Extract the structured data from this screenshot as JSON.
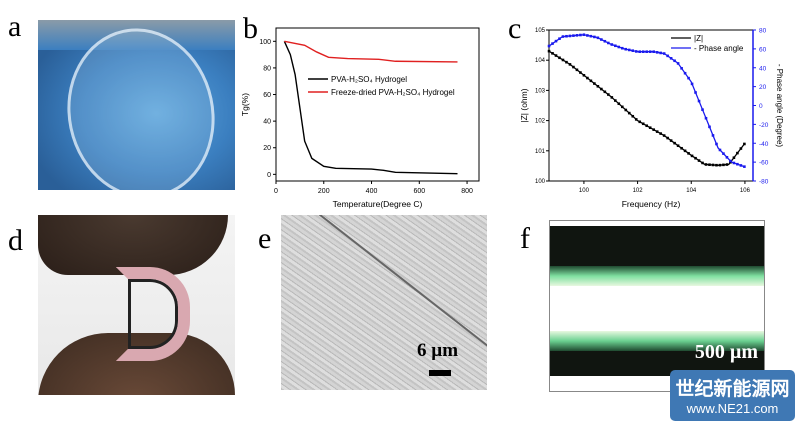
{
  "panel_labels": {
    "a": "a",
    "b": "b",
    "c": "c",
    "d": "d",
    "e": "e",
    "f": "f"
  },
  "scale_bars": {
    "e": "6 µm",
    "f": "500 µm"
  },
  "watermark": {
    "line1": "世纪新能源网",
    "line2": "www.NE21.com"
  },
  "chart_data": [
    {
      "type": "line",
      "panel": "b",
      "xlabel": "Temperature(Degree C)",
      "ylabel": "Tg(%)",
      "xlim": [
        0,
        850
      ],
      "ylim": [
        -5,
        110
      ],
      "xticks": [
        0,
        200,
        400,
        600,
        800
      ],
      "yticks": [
        0,
        20,
        40,
        60,
        80,
        100
      ],
      "legend_position": "center-right",
      "series": [
        {
          "name": "PVA-H2SO4 Hydrogel",
          "color": "#000000",
          "x": [
            35,
            60,
            80,
            100,
            120,
            150,
            200,
            250,
            400,
            450,
            500,
            760
          ],
          "y": [
            100,
            90,
            75,
            50,
            25,
            12,
            6,
            4.5,
            4,
            3,
            1.5,
            0.5
          ]
        },
        {
          "name": "Freeze-dried PVA-H2SO4 Hydrogel",
          "color": "#e02020",
          "x": [
            35,
            120,
            170,
            220,
            300,
            430,
            500,
            760
          ],
          "y": [
            100,
            97,
            92,
            88,
            87,
            86.5,
            85,
            84.5
          ]
        }
      ]
    },
    {
      "type": "line",
      "panel": "c",
      "xlabel": "Frequency (Hz)",
      "ylabel": "|Z| (ohm)",
      "y2label": "- Phase angle (Degree)",
      "xscale": "log",
      "yscale": "log",
      "xlim": [
        0.05,
        2000000
      ],
      "ylim": [
        1,
        100000
      ],
      "y2lim": [
        -80,
        80
      ],
      "xticks": [
        "10^0",
        "10^2",
        "10^4",
        "10^6"
      ],
      "yticks": [
        "10^0",
        "10^1",
        "10^2",
        "10^3",
        "10^4",
        "10^5"
      ],
      "y2ticks": [
        -80,
        -60,
        -40,
        -20,
        0,
        20,
        40,
        60,
        80
      ],
      "legend_position": "top-right",
      "series": [
        {
          "name": "|Z|",
          "color": "#000000",
          "axis": "left",
          "logf": [
            -1.3,
            -0.5,
            0,
            1,
            2,
            3,
            4,
            4.5,
            5,
            5.4,
            6
          ],
          "logZ": [
            4.3,
            3.85,
            3.5,
            2.8,
            2.0,
            1.5,
            0.85,
            0.55,
            0.52,
            0.55,
            1.25
          ]
        },
        {
          "name": "- Phase angle",
          "color": "#1a1aee",
          "axis": "right",
          "logf": [
            -1.3,
            -0.8,
            0,
            0.5,
            1,
            1.5,
            2,
            2.6,
            3,
            3.5,
            4,
            4.5,
            5,
            5.5,
            6
          ],
          "phase": [
            63,
            73,
            75,
            72,
            65,
            60,
            57,
            57,
            55,
            45,
            25,
            -10,
            -45,
            -60,
            -65
          ]
        }
      ]
    }
  ]
}
